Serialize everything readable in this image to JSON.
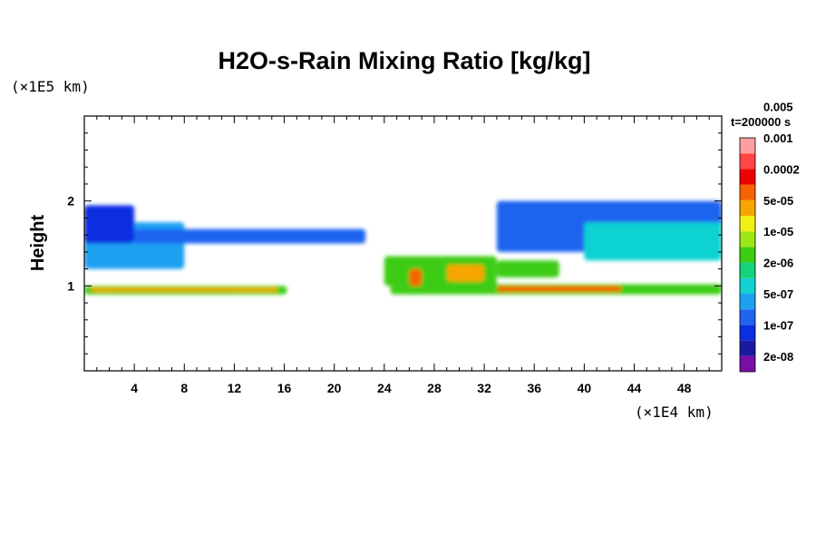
{
  "chart_data": {
    "type": "heatmap",
    "title": "H2O-s-Rain Mixing Ratio [kg/kg]",
    "ylabel": "Height",
    "y_unit": "(×1E5 km)",
    "x_unit": "(×1E4 km)",
    "time_label": "t=200000 s",
    "xlim": [
      0,
      51
    ],
    "ylim": [
      0,
      3
    ],
    "x_ticks": [
      "4",
      "8",
      "12",
      "16",
      "20",
      "24",
      "28",
      "32",
      "36",
      "40",
      "44",
      "48"
    ],
    "y_ticks": [
      "1",
      "2"
    ],
    "colorbar": {
      "colors": [
        "#7a0da6",
        "#1a1aa0",
        "#0a2ee0",
        "#1e64f0",
        "#1ea0f0",
        "#10d2d2",
        "#16d27a",
        "#3ccc12",
        "#9ce612",
        "#f0f014",
        "#f7a500",
        "#f56400",
        "#f00000",
        "#ff4646",
        "#ffa0a0"
      ],
      "labels": [
        "2e-08",
        "1e-07",
        "5e-07",
        "2e-06",
        "1e-05",
        "5e-05",
        "0.0002",
        "0.001",
        "0.005"
      ]
    },
    "bands": [
      {
        "x0": 0,
        "x1": 16.2,
        "y0": 0.9,
        "y1": 1.0,
        "level": 7
      },
      {
        "x0": 0.5,
        "x1": 15.5,
        "y0": 0.93,
        "y1": 0.98,
        "level": 10
      },
      {
        "x0": 24.5,
        "x1": 51,
        "y0": 0.9,
        "y1": 1.02,
        "level": 7
      },
      {
        "x0": 33,
        "x1": 43,
        "y0": 0.93,
        "y1": 1.0,
        "level": 11
      },
      {
        "x0": 0,
        "x1": 8,
        "y0": 1.2,
        "y1": 1.75,
        "level": 4
      },
      {
        "x0": 0,
        "x1": 4,
        "y0": 1.5,
        "y1": 1.95,
        "level": 2
      },
      {
        "x0": 4,
        "x1": 22.5,
        "y0": 1.5,
        "y1": 1.67,
        "level": 3
      },
      {
        "x0": 33,
        "x1": 51,
        "y0": 1.4,
        "y1": 2.0,
        "level": 3
      },
      {
        "x0": 40,
        "x1": 51,
        "y0": 1.3,
        "y1": 1.75,
        "level": 5
      },
      {
        "x0": 24,
        "x1": 33,
        "y0": 1.0,
        "y1": 1.35,
        "level": 7
      },
      {
        "x0": 26,
        "x1": 27,
        "y0": 1.0,
        "y1": 1.2,
        "level": 11
      },
      {
        "x0": 29,
        "x1": 32,
        "y0": 1.05,
        "y1": 1.25,
        "level": 10
      },
      {
        "x0": 33,
        "x1": 38,
        "y0": 1.1,
        "y1": 1.3,
        "level": 7
      }
    ]
  }
}
